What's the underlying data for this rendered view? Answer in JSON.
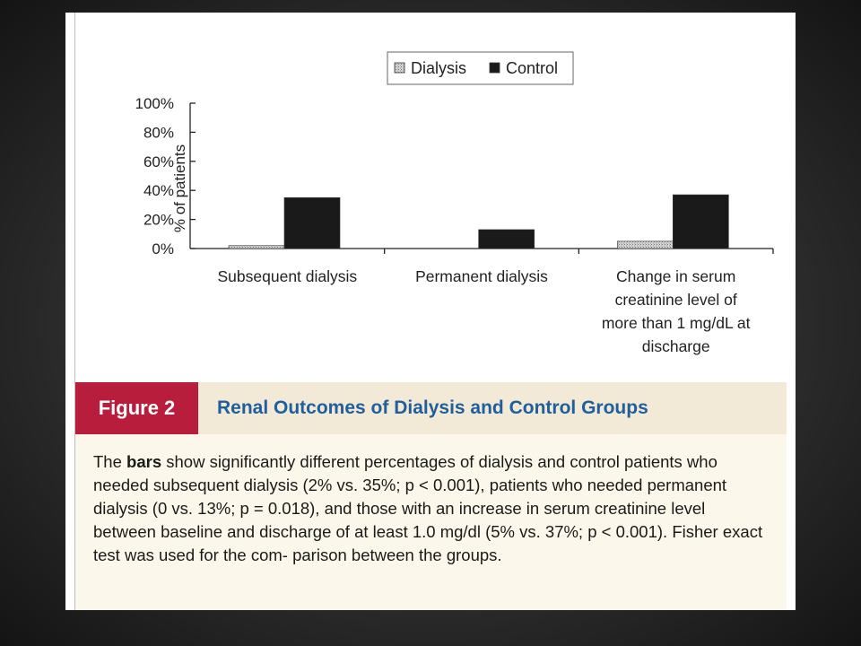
{
  "figure": {
    "label": "Figure 2",
    "title": "Renal Outcomes of Dialysis and Control Groups",
    "caption_pre": "The ",
    "caption_em": "bars",
    "caption_post": " show significantly different percentages of dialysis and control patients who needed subsequent dialysis (2% vs. 35%; p < 0.001), patients who needed permanent dialysis (0 vs. 13%; p = 0.018), and those with an increase in serum creatinine level between baseline and discharge of at least 1.0 mg/dl (5% vs. 37%; p < 0.001). Fisher exact test was used for the com- parison between the groups."
  },
  "chart_data": {
    "type": "bar",
    "ylabel": "% of patients",
    "ylim": [
      0,
      100
    ],
    "yticks": [
      "0%",
      "20%",
      "40%",
      "60%",
      "80%",
      "100%"
    ],
    "ytick_values": [
      0,
      20,
      40,
      60,
      80,
      100
    ],
    "categories": [
      [
        "Subsequent dialysis"
      ],
      [
        "Permanent dialysis"
      ],
      [
        "Change in serum",
        "creatinine level of",
        "more than 1 mg/dL at",
        "discharge"
      ]
    ],
    "series": [
      {
        "name": "Dialysis",
        "values": [
          2,
          0,
          5
        ],
        "color": "#c8c8c8",
        "pattern": "dotted"
      },
      {
        "name": "Control",
        "values": [
          35,
          13,
          37
        ],
        "color": "#1a1a1a"
      }
    ],
    "legend_position": "top-center",
    "grid": false
  },
  "colors": {
    "figure_label_bg": "#b81e3b",
    "figure_title": "#1f5f9e",
    "header_bg": "#f2e9d6",
    "caption_bg": "#fbf7ea"
  }
}
